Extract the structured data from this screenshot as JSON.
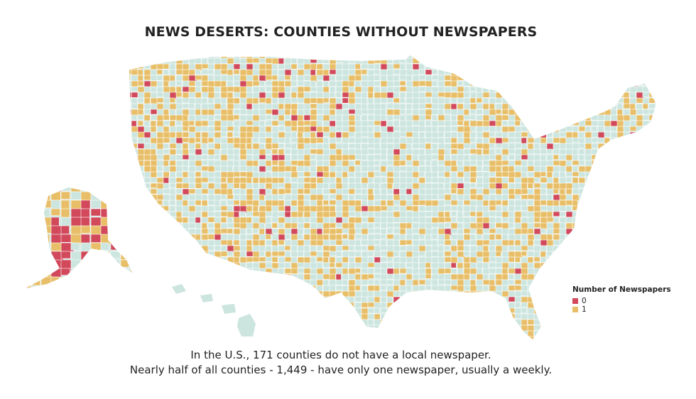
{
  "title": "NEWS DESERTS: COUNTIES WITHOUT NEWSPAPERS",
  "legend": {
    "title": "Number of Newspapers",
    "items": [
      {
        "label": "0",
        "color": "#d1495b"
      },
      {
        "label": "1",
        "color": "#e8bf68"
      }
    ]
  },
  "colors": {
    "zero": "#d1495b",
    "one": "#e8bf68",
    "other": "#cde5df",
    "border": "#ffffff"
  },
  "caption": {
    "line1": "In the U.S., 171 counties do not have a local newspaper.",
    "line2": "Nearly half of all counties - 1,449 - have only one newspaper, usually a weekly."
  }
}
